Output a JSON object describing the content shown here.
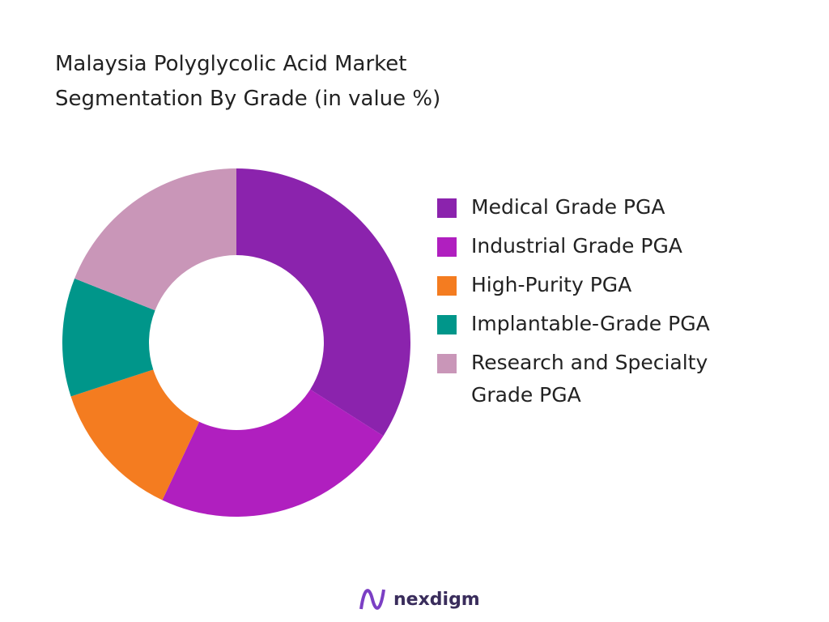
{
  "chart_data": {
    "type": "donut",
    "title": "Malaysia Polyglycolic Acid Market Segmentation By Grade (in value %)",
    "categories": [
      "Medical Grade PGA",
      "Industrial Grade PGA",
      "High-Purity PGA",
      "Implantable-Grade PGA",
      "Research and Specialty Grade PGA"
    ],
    "values": [
      34,
      23,
      13,
      11,
      19
    ],
    "colors": [
      "#8b23ad",
      "#b01fbf",
      "#f47c20",
      "#00968a",
      "#c996b8"
    ],
    "legend": "right"
  },
  "footer": {
    "brand": "nexdigm"
  }
}
